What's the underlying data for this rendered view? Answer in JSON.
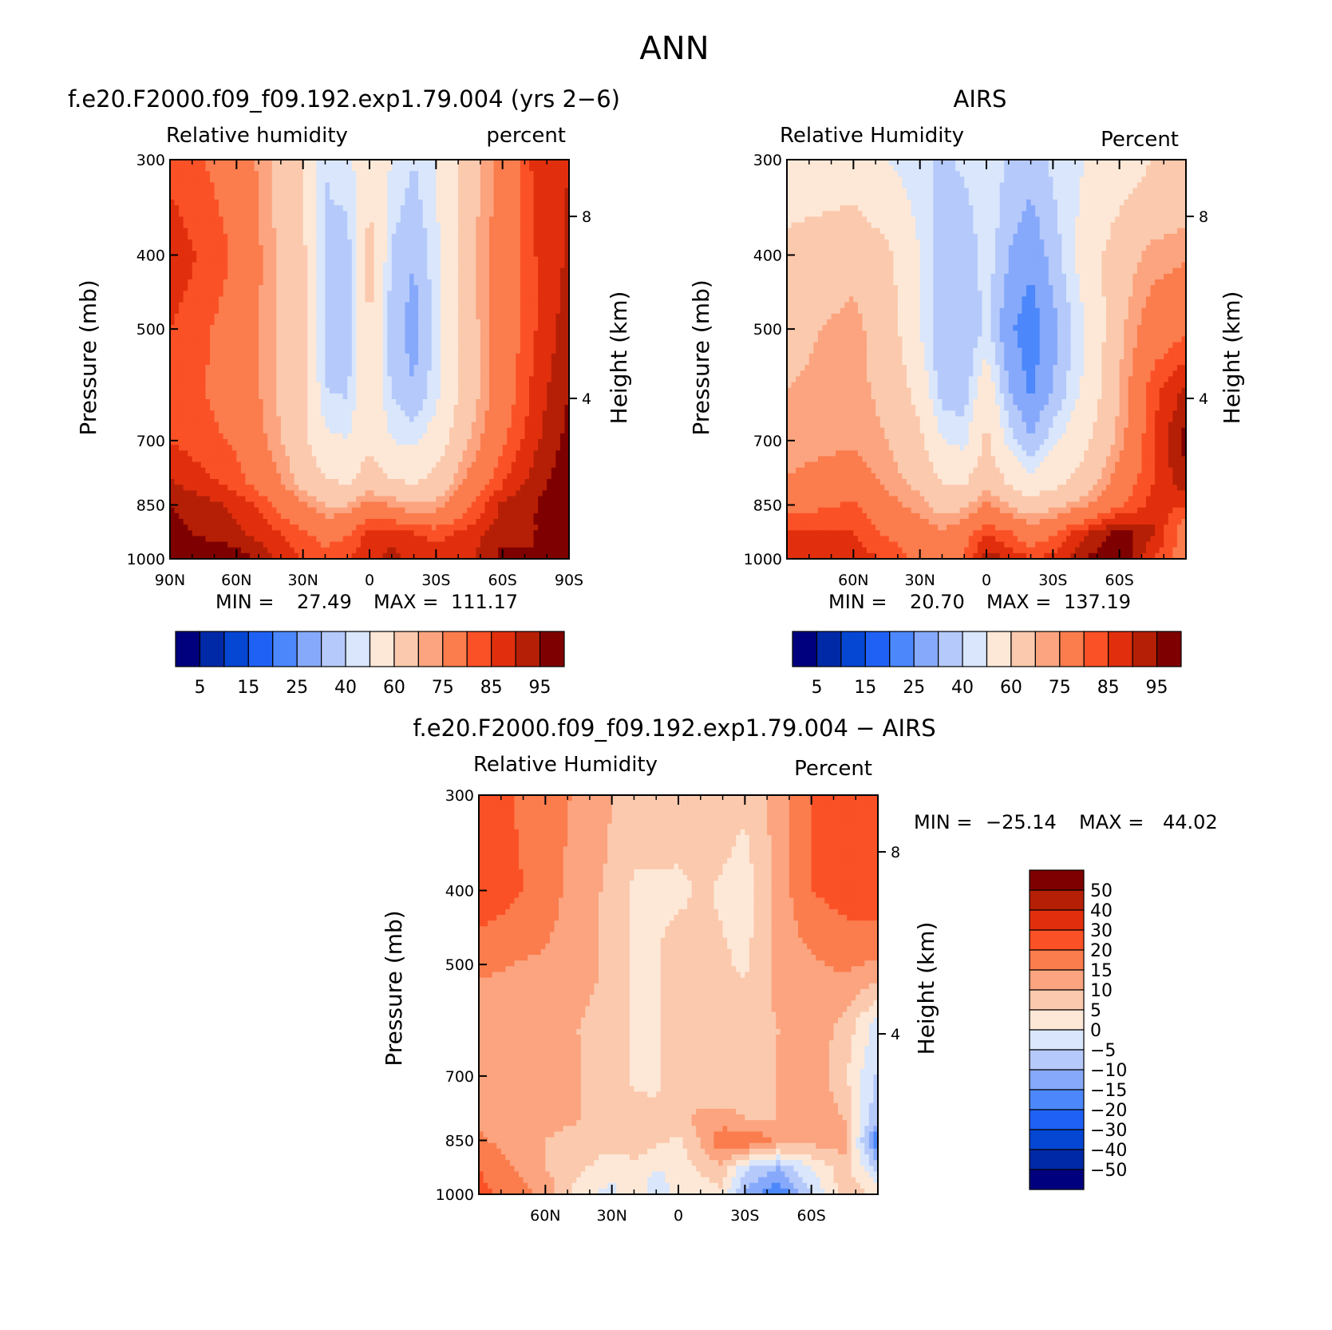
{
  "figure_title": "ANN",
  "colorbar_abs": {
    "colors": [
      "#00007f",
      "#0029a7",
      "#0546d3",
      "#1f61f5",
      "#4c88fb",
      "#86a9fb",
      "#b5c9fb",
      "#d9e6fb",
      "#fde8d7",
      "#fbc9ad",
      "#fba47f",
      "#fb7c4d",
      "#fb5126",
      "#e12f0d",
      "#b51f06",
      "#7f0000"
    ],
    "tick_labels": [
      "5",
      "15",
      "25",
      "40",
      "60",
      "75",
      "85",
      "95"
    ]
  },
  "colorbar_diff": {
    "colors": [
      "#00007f",
      "#0029a7",
      "#0546d3",
      "#1f61f5",
      "#4c88fb",
      "#86a9fb",
      "#b5c9fb",
      "#d9e6fb",
      "#fde8d7",
      "#fbc9ad",
      "#fba47f",
      "#fb7c4d",
      "#fb5126",
      "#e12f0d",
      "#b51f06",
      "#7f0000"
    ],
    "tick_labels": [
      "50",
      "40",
      "30",
      "20",
      "15",
      "10",
      "5",
      "0",
      "−5",
      "−10",
      "−15",
      "−20",
      "−30",
      "−40",
      "−50"
    ]
  },
  "chart_data": [
    {
      "type": "heatmap",
      "title": "f.e20.F2000.f09_f09.192.exp1.79.004 (yrs 2−6)",
      "subtitle_left": "Relative humidity",
      "subtitle_right": "percent",
      "ylabel": "Pressure (mb)",
      "y2label": "Height (km)",
      "yticks": [
        "300",
        "400",
        "500",
        "700",
        "850",
        "1000"
      ],
      "xticks": [
        "90N",
        "60N",
        "30N",
        "0",
        "30S",
        "60S",
        "90S"
      ],
      "y2ticks": [
        "8",
        "4"
      ],
      "min_label": "MIN =",
      "min_value": "27.49",
      "max_label": "MAX =",
      "max_value": "111.17",
      "levels": [
        5,
        10,
        15,
        20,
        25,
        30,
        35,
        40,
        50,
        60,
        65,
        75,
        80,
        85,
        90,
        95
      ],
      "xlim": [
        90,
        -90
      ],
      "ylim": [
        1000,
        300
      ],
      "lat": [
        90,
        60,
        45,
        30,
        20,
        10,
        0,
        -10,
        -20,
        -30,
        -45,
        -60,
        -75,
        -90
      ],
      "pressure": [
        300,
        400,
        500,
        600,
        700,
        800,
        850,
        925,
        1000
      ],
      "values": [
        [
          78,
          72,
          60,
          50,
          35,
          38,
          45,
          40,
          35,
          40,
          55,
          68,
          82,
          85
        ],
        [
          84,
          74,
          62,
          52,
          34,
          32,
          55,
          34,
          30,
          38,
          58,
          70,
          80,
          86
        ],
        [
          80,
          72,
          62,
          52,
          34,
          32,
          50,
          32,
          28,
          36,
          56,
          70,
          80,
          88
        ],
        [
          78,
          72,
          62,
          52,
          35,
          34,
          48,
          34,
          30,
          38,
          55,
          70,
          82,
          90
        ],
        [
          80,
          74,
          64,
          52,
          42,
          40,
          48,
          40,
          38,
          44,
          60,
          74,
          84,
          92
        ],
        [
          86,
          78,
          70,
          58,
          52,
          50,
          56,
          52,
          50,
          54,
          68,
          80,
          88,
          94
        ],
        [
          90,
          84,
          76,
          66,
          60,
          60,
          68,
          64,
          60,
          62,
          74,
          86,
          90,
          95
        ],
        [
          92,
          86,
          82,
          76,
          72,
          74,
          82,
          84,
          80,
          78,
          82,
          88,
          90,
          95
        ],
        [
          96,
          94,
          86,
          80,
          78,
          80,
          84,
          86,
          84,
          84,
          84,
          92,
          90,
          95
        ]
      ]
    },
    {
      "type": "heatmap",
      "title": "AIRS",
      "subtitle_left": "Relative Humidity",
      "subtitle_right": "Percent",
      "ylabel": "Pressure (mb)",
      "y2label": "Height (km)",
      "yticks": [
        "300",
        "400",
        "500",
        "700",
        "850",
        "1000"
      ],
      "xticks": [
        "60N",
        "30N",
        "0",
        "30S",
        "60S"
      ],
      "y2ticks": [
        "8",
        "4"
      ],
      "min_label": "MIN =",
      "min_value": "20.70",
      "max_label": "MAX =",
      "max_value": "137.19",
      "levels": [
        5,
        10,
        15,
        20,
        25,
        30,
        35,
        40,
        50,
        60,
        65,
        75,
        80,
        85,
        90,
        95
      ],
      "xlim": [
        90,
        -90
      ],
      "ylim": [
        1000,
        300
      ],
      "lat": [
        90,
        60,
        45,
        30,
        20,
        10,
        0,
        -10,
        -20,
        -30,
        -45,
        -60,
        -75,
        -90
      ],
      "pressure": [
        300,
        400,
        500,
        600,
        700,
        800,
        850,
        925,
        1000
      ],
      "values": [
        [
          42,
          44,
          40,
          36,
          34,
          36,
          40,
          34,
          32,
          36,
          40,
          44,
          50,
          52
        ],
        [
          54,
          58,
          52,
          40,
          32,
          30,
          38,
          30,
          26,
          32,
          44,
          56,
          62,
          64
        ],
        [
          58,
          62,
          56,
          40,
          30,
          30,
          36,
          26,
          22,
          28,
          40,
          58,
          70,
          74
        ],
        [
          60,
          62,
          58,
          46,
          32,
          32,
          46,
          30,
          24,
          30,
          42,
          60,
          78,
          86
        ],
        [
          62,
          64,
          60,
          52,
          40,
          38,
          52,
          38,
          30,
          38,
          48,
          62,
          80,
          92
        ],
        [
          66,
          70,
          64,
          58,
          50,
          50,
          58,
          50,
          44,
          48,
          56,
          70,
          80,
          88
        ],
        [
          72,
          76,
          68,
          62,
          56,
          58,
          66,
          60,
          54,
          58,
          64,
          74,
          82,
          80
        ],
        [
          80,
          80,
          74,
          70,
          66,
          72,
          80,
          76,
          70,
          74,
          84,
          92,
          86,
          70
        ],
        [
          84,
          82,
          80,
          72,
          68,
          76,
          88,
          84,
          80,
          82,
          90,
          96,
          80,
          72
        ]
      ]
    },
    {
      "type": "heatmap",
      "title": "f.e20.F2000.f09_f09.192.exp1.79.004 − AIRS",
      "subtitle_left": "Relative Humidity",
      "subtitle_right": "Percent",
      "ylabel": "Pressure (mb)",
      "y2label": "Height (km)",
      "yticks": [
        "300",
        "400",
        "500",
        "700",
        "850",
        "1000"
      ],
      "xticks": [
        "60N",
        "30N",
        "0",
        "30S",
        "60S"
      ],
      "y2ticks": [
        "8",
        "4"
      ],
      "min_label": "MIN =",
      "min_value": "−25.14",
      "max_label": "MAX =",
      "max_value": "44.02",
      "levels": [
        -50,
        -40,
        -30,
        -20,
        -15,
        -10,
        -5,
        0,
        5,
        10,
        15,
        20,
        30,
        40,
        50
      ],
      "xlim": [
        90,
        -90
      ],
      "ylim": [
        1000,
        300
      ],
      "lat": [
        90,
        60,
        45,
        30,
        20,
        10,
        0,
        -10,
        -20,
        -30,
        -45,
        -60,
        -75,
        -90
      ],
      "pressure": [
        300,
        400,
        500,
        600,
        700,
        800,
        850,
        925,
        1000
      ],
      "values": [
        [
          22,
          18,
          14,
          10,
          8,
          8,
          10,
          10,
          8,
          6,
          12,
          20,
          24,
          26
        ],
        [
          24,
          18,
          12,
          9,
          4,
          4,
          3,
          6,
          4,
          2,
          12,
          20,
          22,
          24
        ],
        [
          16,
          14,
          12,
          9,
          4,
          4,
          10,
          8,
          6,
          4,
          12,
          14,
          16,
          14
        ],
        [
          12,
          12,
          10,
          8,
          4,
          4,
          9,
          8,
          6,
          8,
          10,
          14,
          8,
          -2
        ],
        [
          12,
          12,
          10,
          8,
          4,
          4,
          8,
          6,
          6,
          8,
          10,
          14,
          6,
          -6
        ],
        [
          14,
          12,
          10,
          8,
          7,
          6,
          8,
          12,
          12,
          10,
          10,
          14,
          10,
          -10
        ],
        [
          16,
          10,
          8,
          7,
          10,
          6,
          4,
          10,
          20,
          20,
          14,
          12,
          12,
          -20
        ],
        [
          20,
          10,
          6,
          2,
          2,
          0,
          2,
          6,
          8,
          -4,
          -10,
          0,
          8,
          -6
        ],
        [
          22,
          14,
          2,
          -2,
          4,
          -4,
          2,
          2,
          4,
          -12,
          -20,
          -6,
          8,
          4
        ]
      ]
    }
  ]
}
